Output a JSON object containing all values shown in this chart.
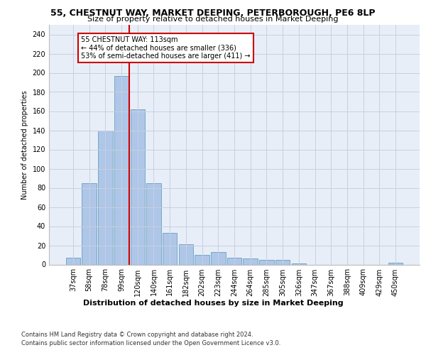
{
  "title_line1": "55, CHESTNUT WAY, MARKET DEEPING, PETERBOROUGH, PE6 8LP",
  "title_line2": "Size of property relative to detached houses in Market Deeping",
  "xlabel": "Distribution of detached houses by size in Market Deeping",
  "ylabel": "Number of detached properties",
  "categories": [
    "37sqm",
    "58sqm",
    "78sqm",
    "99sqm",
    "120sqm",
    "140sqm",
    "161sqm",
    "182sqm",
    "202sqm",
    "223sqm",
    "244sqm",
    "264sqm",
    "285sqm",
    "305sqm",
    "326sqm",
    "347sqm",
    "367sqm",
    "388sqm",
    "409sqm",
    "429sqm",
    "450sqm"
  ],
  "values": [
    7,
    85,
    140,
    197,
    162,
    85,
    33,
    21,
    10,
    13,
    7,
    6,
    5,
    5,
    1,
    0,
    0,
    0,
    0,
    0,
    2
  ],
  "bar_color": "#aec6e8",
  "bar_edge_color": "#6a9fc0",
  "vline_idx": 3.5,
  "vline_color": "#cc0000",
  "annotation_text": "55 CHESTNUT WAY: 113sqm\n← 44% of detached houses are smaller (336)\n53% of semi-detached houses are larger (411) →",
  "annotation_box_color": "#ffffff",
  "annotation_box_edge": "#cc0000",
  "ylim": [
    0,
    250
  ],
  "yticks": [
    0,
    20,
    40,
    60,
    80,
    100,
    120,
    140,
    160,
    180,
    200,
    220,
    240
  ],
  "footer_line1": "Contains HM Land Registry data © Crown copyright and database right 2024.",
  "footer_line2": "Contains public sector information licensed under the Open Government Licence v3.0.",
  "background_color": "#e8eef8",
  "grid_color": "#c8d0e0",
  "title_fontsize": 9,
  "subtitle_fontsize": 8,
  "ylabel_fontsize": 7,
  "tick_fontsize": 7,
  "ann_fontsize": 7,
  "xlabel_fontsize": 8,
  "footer_fontsize": 6
}
